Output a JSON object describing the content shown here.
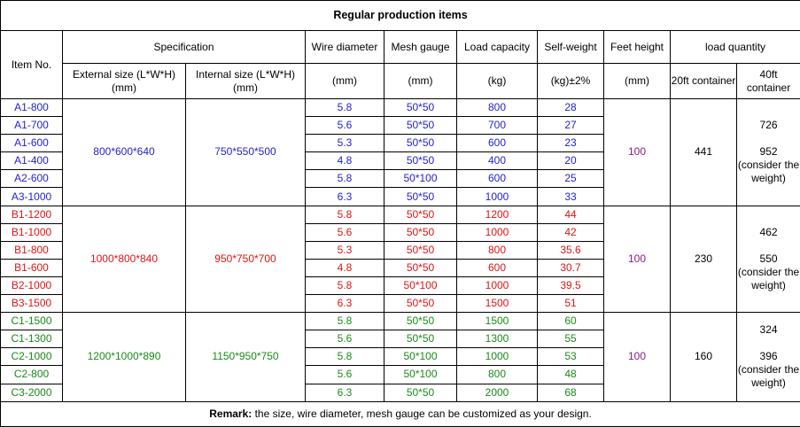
{
  "title": "Regular production items",
  "headers": {
    "item_no": "Item No.",
    "specification": "Specification",
    "external_size": "External size (L*W*H)",
    "external_unit": "(mm)",
    "internal_size": "Internal size (L*W*H)",
    "internal_unit": "(mm)",
    "wire_diameter": "Wire diameter",
    "wire_unit": "(mm)",
    "mesh_gauge": "Mesh gauge",
    "mesh_unit": "(mm)",
    "load_capacity": "Load capacity",
    "load_unit": "(kg)",
    "self_weight": "Self-weight",
    "self_unit": "(kg)±2%",
    "feet_height": "Feet height",
    "feet_unit": "(mm)",
    "load_quantity": "load quantity",
    "c20": "20ft container",
    "c40": "40ft container"
  },
  "groups": [
    {
      "external": "800*600*640",
      "internal": "750*550*500",
      "feet": "100",
      "qty20": "441",
      "qty40_a": "726",
      "qty40_b": "952",
      "qty40_note": "(consider the weight)",
      "rows": [
        {
          "item": "A1-800",
          "wire": "5.8",
          "mesh": "50*50",
          "load": "800",
          "weight": "28"
        },
        {
          "item": "A1-700",
          "wire": "5.6",
          "mesh": "50*50",
          "load": "700",
          "weight": "27"
        },
        {
          "item": "A1-600",
          "wire": "5.3",
          "mesh": "50*50",
          "load": "600",
          "weight": "23"
        },
        {
          "item": "A1-400",
          "wire": "4.8",
          "mesh": "50*50",
          "load": "400",
          "weight": "20"
        },
        {
          "item": "A2-600",
          "wire": "5.8",
          "mesh": "50*100",
          "load": "600",
          "weight": "25"
        },
        {
          "item": "A3-1000",
          "wire": "6.3",
          "mesh": "50*50",
          "load": "1000",
          "weight": "33"
        }
      ]
    },
    {
      "external": "1000*800*840",
      "internal": "950*750*700",
      "feet": "100",
      "qty20": "230",
      "qty40_a": "462",
      "qty40_b": "550",
      "qty40_note": "(consider the weight)",
      "rows": [
        {
          "item": "B1-1200",
          "wire": "5.8",
          "mesh": "50*50",
          "load": "1200",
          "weight": "44"
        },
        {
          "item": "B1-1000",
          "wire": "5.6",
          "mesh": "50*50",
          "load": "1000",
          "weight": "42"
        },
        {
          "item": "B1-800",
          "wire": "5.3",
          "mesh": "50*50",
          "load": "800",
          "weight": "35.6"
        },
        {
          "item": "B1-600",
          "wire": "4.8",
          "mesh": "50*50",
          "load": "600",
          "weight": "30.7"
        },
        {
          "item": "B2-1000",
          "wire": "5.8",
          "mesh": "50*100",
          "load": "1000",
          "weight": "39.5"
        },
        {
          "item": "B3-1500",
          "wire": "6.3",
          "mesh": "50*50",
          "load": "1500",
          "weight": "51"
        }
      ]
    },
    {
      "external": "1200*1000*890",
      "internal": "1150*950*750",
      "feet": "100",
      "qty20": "160",
      "qty40_a": "324",
      "qty40_b": "396",
      "qty40_note": "(consider the weight)",
      "rows": [
        {
          "item": "C1-1500",
          "wire": "5.8",
          "mesh": "50*50",
          "load": "1500",
          "weight": "60"
        },
        {
          "item": "C1-1300",
          "wire": "5.6",
          "mesh": "50*50",
          "load": "1300",
          "weight": "55"
        },
        {
          "item": "C2-1000",
          "wire": "5.8",
          "mesh": "50*100",
          "load": "1000",
          "weight": "53"
        },
        {
          "item": "C2-800",
          "wire": "5.6",
          "mesh": "50*100",
          "load": "800",
          "weight": "48"
        },
        {
          "item": "C3-2000",
          "wire": "6.3",
          "mesh": "50*50",
          "load": "2000",
          "weight": "68"
        }
      ]
    }
  ],
  "remark": {
    "label": "Remark:",
    "text": " the size, wire diameter, mesh gauge can be customized as your design."
  },
  "colors": {
    "group_a": "#1f1fd0",
    "group_b": "#e01414",
    "group_c": "#1a8a1a",
    "feet_height": "#8b1a8b"
  }
}
